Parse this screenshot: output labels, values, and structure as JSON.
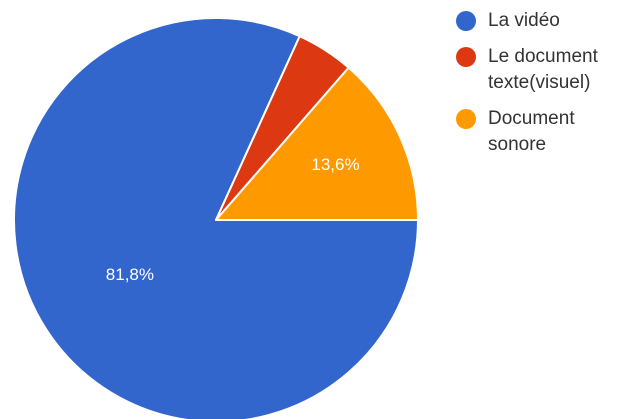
{
  "chart_data": {
    "type": "pie",
    "title": "",
    "legend_position": "right",
    "categories": [
      "La vidéo",
      "Le document texte(visuel)",
      "Document sonore"
    ],
    "values": [
      81.8,
      4.6,
      13.6
    ],
    "labels": [
      "81,8%",
      "",
      "13,6%"
    ],
    "colors": [
      "#3366cc",
      "#dc3912",
      "#ff9900"
    ]
  },
  "legend": {
    "items": [
      {
        "lines": [
          "La vidéo"
        ]
      },
      {
        "lines": [
          "Le document",
          "texte(visuel)"
        ]
      },
      {
        "lines": [
          "Document",
          "sonore"
        ]
      }
    ]
  }
}
